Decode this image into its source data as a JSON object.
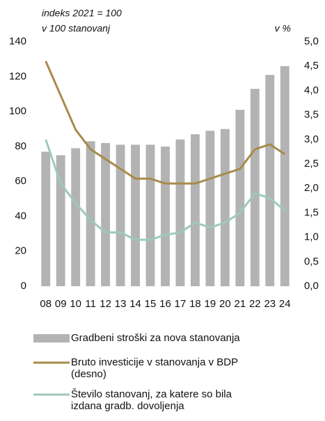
{
  "chart_data": {
    "type": "bar",
    "left_note": [
      "indeks 2021 = 100",
      "v 100 stanovanj"
    ],
    "right_note": "v %",
    "categories": [
      "08",
      "09",
      "10",
      "11",
      "12",
      "13",
      "14",
      "15",
      "16",
      "17",
      "18",
      "19",
      "20",
      "21",
      "22",
      "23",
      "24"
    ],
    "series": [
      {
        "name": "Gradbeni stroški za nova stanovanja",
        "type": "bar",
        "color": "#b3b3b3",
        "values": [
          77,
          75,
          79,
          83,
          82,
          81,
          81,
          81,
          80,
          84,
          87,
          89,
          90,
          101,
          113,
          121,
          126
        ]
      },
      {
        "name": "Bruto investicije v stanovanja v BDP (desno)",
        "type": "line",
        "axis": "y2",
        "color": "#a88a4a",
        "values": [
          4.6,
          3.9,
          3.2,
          2.8,
          2.6,
          2.4,
          2.2,
          2.2,
          2.1,
          2.1,
          2.1,
          2.2,
          2.3,
          2.4,
          2.8,
          2.9,
          2.7
        ]
      },
      {
        "name": "Število stanovanj, za katere so bila izdana gradb. dovoljenja",
        "type": "line",
        "axis": "y2",
        "color": "#9ccab8",
        "values": [
          3.0,
          2.1,
          1.7,
          1.35,
          1.1,
          1.1,
          0.95,
          0.95,
          1.05,
          1.1,
          1.3,
          1.2,
          1.3,
          1.5,
          1.9,
          1.8,
          1.55
        ]
      }
    ],
    "ylim": [
      0,
      140
    ],
    "yticks": [
      0,
      20,
      40,
      60,
      80,
      100,
      120,
      140
    ],
    "y2lim": [
      0,
      5
    ],
    "y2ticks": [
      {
        "value": 0,
        "label": "0,0"
      },
      {
        "value": 0.5,
        "label": "0,5"
      },
      {
        "value": 1,
        "label": "1,0"
      },
      {
        "value": 1.5,
        "label": "1,5"
      },
      {
        "value": 2,
        "label": "2,0"
      },
      {
        "value": 2.5,
        "label": "2,5"
      },
      {
        "value": 3,
        "label": "3,0"
      },
      {
        "value": 3.5,
        "label": "3,5"
      },
      {
        "value": 4,
        "label": "4,0"
      },
      {
        "value": 4.5,
        "label": "4,5"
      },
      {
        "value": 5,
        "label": "5,0"
      }
    ],
    "grid": false
  }
}
